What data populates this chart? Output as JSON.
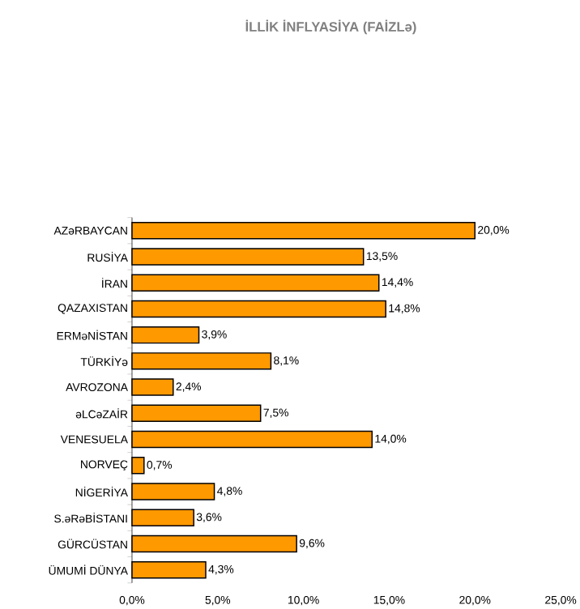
{
  "chart_data": {
    "type": "bar",
    "orientation": "horizontal",
    "title": "İLLİK İNFLYASİYA (FAİZLə)",
    "categories": [
      "AZəRBAYCAN",
      "RUSİYA",
      "İRAN",
      "QAZAXISTAN",
      "ERMəNİSTAN",
      "TÜRKİYə",
      "AVROZONA",
      "əLCəZAİR",
      "VENESUELA",
      "NORVEÇ",
      "NİGERİYA",
      "S.əRəBİSTANI",
      "GÜRCÜSTAN",
      "ÜMUMİ DÜNYA"
    ],
    "values": [
      20.0,
      13.5,
      14.4,
      14.8,
      3.9,
      8.1,
      2.4,
      7.5,
      14.0,
      0.7,
      4.8,
      3.6,
      9.6,
      4.3
    ],
    "value_labels": [
      "20,0%",
      "13,5%",
      "14,4%",
      "14,8%",
      "3,9%",
      "8,1%",
      "2,4%",
      "7,5%",
      "14,0%",
      "0,7%",
      "4,8%",
      "3,6%",
      "9,6%",
      "4,3%"
    ],
    "color": "#ff9900",
    "xlim": [
      0,
      25
    ],
    "xticks": [
      {
        "value": 0,
        "label": "0,0%"
      },
      {
        "value": 5,
        "label": "5,0%"
      },
      {
        "value": 10,
        "label": "10,0%"
      },
      {
        "value": 15,
        "label": "15,0%"
      },
      {
        "value": 20,
        "label": "20,0%"
      },
      {
        "value": 25,
        "label": "25,0%"
      }
    ]
  }
}
